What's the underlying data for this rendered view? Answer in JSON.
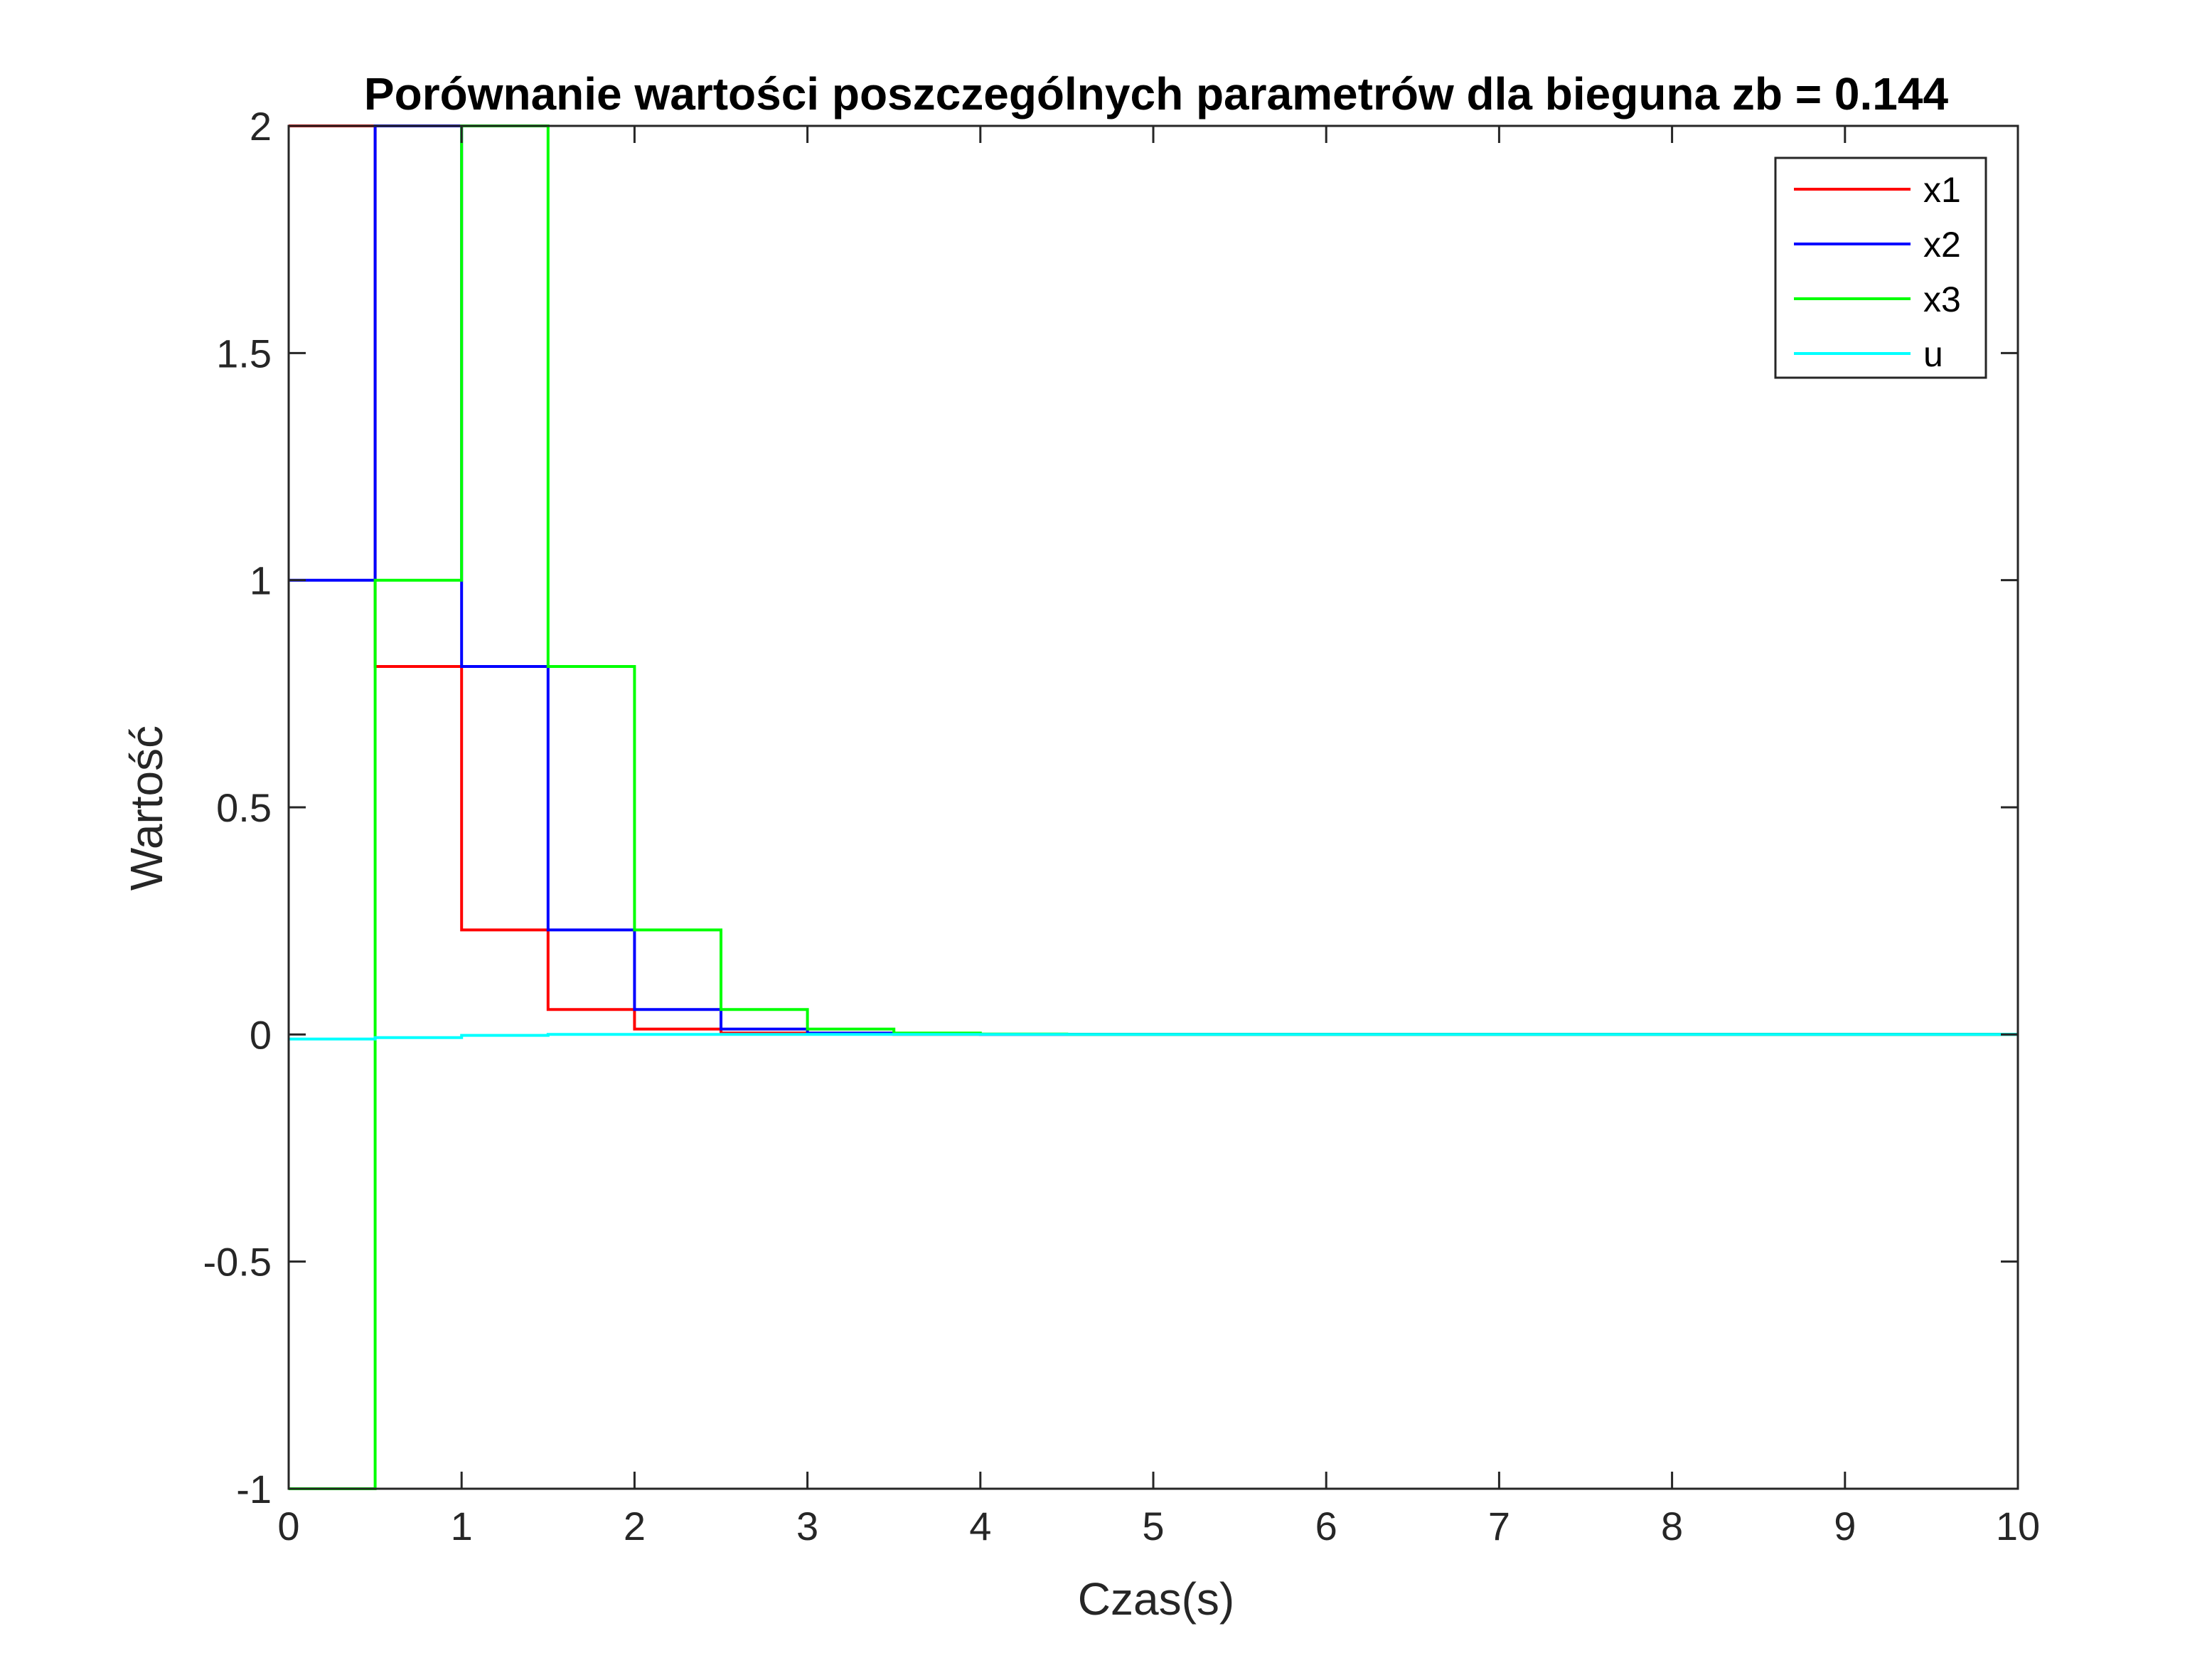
{
  "chart_data": {
    "type": "line",
    "step": true,
    "title": "Porównanie wartości poszczególnych parametrów dla bieguna zb = 0.144",
    "xlabel": "Czas(s)",
    "ylabel": "Wartość",
    "xlim": [
      0,
      10
    ],
    "ylim": [
      -1,
      2
    ],
    "xticks": [
      0,
      1,
      2,
      3,
      4,
      5,
      6,
      7,
      8,
      9,
      10
    ],
    "xtick_labels": [
      "0",
      "1",
      "2",
      "3",
      "4",
      "5",
      "6",
      "7",
      "8",
      "9",
      "10"
    ],
    "yticks": [
      -1,
      -0.5,
      0,
      0.5,
      1,
      1.5,
      2
    ],
    "ytick_labels": [
      "-1",
      "-0.5",
      "0",
      "0.5",
      "1",
      "1.5",
      "2"
    ],
    "grid": false,
    "legend_position": "top-right",
    "x": [
      0,
      0.5,
      1,
      1.5,
      2,
      2.5,
      3,
      3.5,
      4,
      4.5,
      5,
      5.5,
      6,
      6.5,
      7,
      7.5,
      8,
      8.5,
      9,
      9.5,
      10
    ],
    "series": [
      {
        "name": "x1",
        "color": "#ff0000",
        "values": [
          2,
          0.81,
          0.23,
          0.055,
          0.012,
          0.003,
          0.001,
          0,
          0,
          0,
          0,
          0,
          0,
          0,
          0,
          0,
          0,
          0,
          0,
          0,
          0
        ]
      },
      {
        "name": "x2",
        "color": "#0000ff",
        "values": [
          1,
          2,
          0.81,
          0.23,
          0.055,
          0.012,
          0.003,
          0.001,
          0,
          0,
          0,
          0,
          0,
          0,
          0,
          0,
          0,
          0,
          0,
          0,
          0
        ]
      },
      {
        "name": "x3",
        "color": "#00ff00",
        "values": [
          -1,
          1,
          2,
          0.81,
          0.23,
          0.055,
          0.012,
          0.003,
          0.001,
          0,
          0,
          0,
          0,
          0,
          0,
          0,
          0,
          0,
          0,
          0,
          0
        ]
      },
      {
        "name": "u",
        "color": "#00ffff",
        "values": [
          -0.01,
          -0.007,
          -0.002,
          0,
          0,
          0,
          0,
          0,
          0,
          0,
          0,
          0,
          0,
          0,
          0,
          0,
          0,
          0,
          0,
          0,
          0
        ]
      }
    ]
  }
}
